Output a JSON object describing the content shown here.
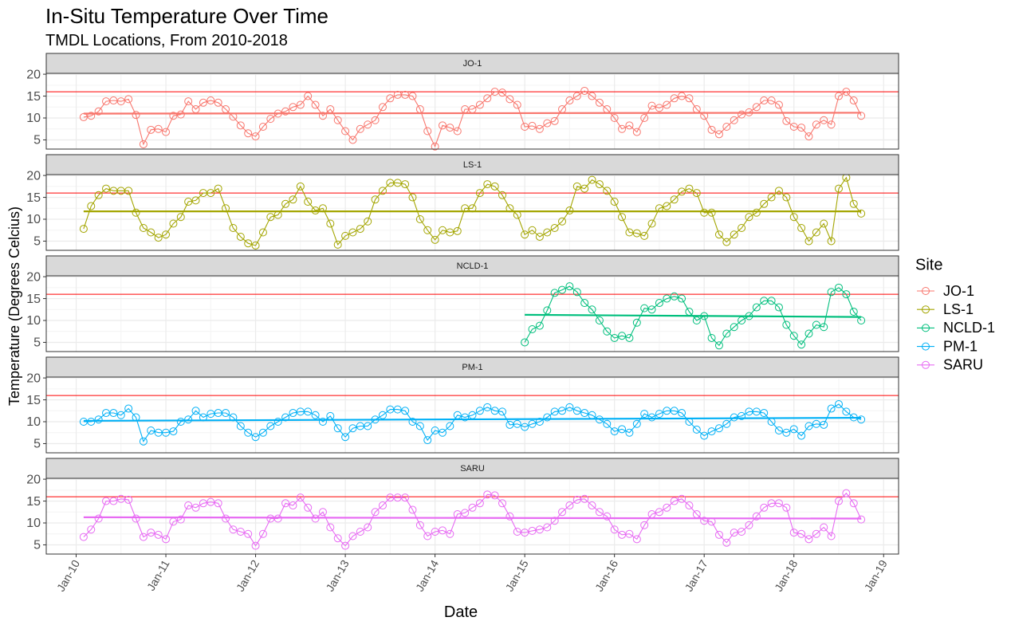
{
  "chart_data": {
    "type": "line",
    "title": "In-Situ Temperature Over Time",
    "subtitle": "TMDL Locations, From 2010-2018",
    "x_label": "Date",
    "y_label": "Temperature (Degrees Celcius)",
    "legend_title": "Site",
    "grid": true,
    "threshold": 16,
    "threshold_color": "#ff0000",
    "x": [
      "2010-02",
      "2010-03",
      "2010-04",
      "2010-05",
      "2010-06",
      "2010-07",
      "2010-08",
      "2010-09",
      "2010-10",
      "2010-11",
      "2010-12",
      "2011-01",
      "2011-02",
      "2011-03",
      "2011-04",
      "2011-05",
      "2011-06",
      "2011-07",
      "2011-08",
      "2011-09",
      "2011-10",
      "2011-11",
      "2011-12",
      "2012-01",
      "2012-02",
      "2012-03",
      "2012-04",
      "2012-05",
      "2012-06",
      "2012-07",
      "2012-08",
      "2012-09",
      "2012-10",
      "2012-11",
      "2012-12",
      "2013-01",
      "2013-02",
      "2013-03",
      "2013-04",
      "2013-05",
      "2013-06",
      "2013-07",
      "2013-08",
      "2013-09",
      "2013-10",
      "2013-11",
      "2013-12",
      "2014-01",
      "2014-02",
      "2014-03",
      "2014-04",
      "2014-05",
      "2014-06",
      "2014-07",
      "2014-08",
      "2014-09",
      "2014-10",
      "2014-11",
      "2014-12",
      "2015-01",
      "2015-02",
      "2015-03",
      "2015-04",
      "2015-05",
      "2015-06",
      "2015-07",
      "2015-08",
      "2015-09",
      "2015-10",
      "2015-11",
      "2015-12",
      "2016-01",
      "2016-02",
      "2016-03",
      "2016-04",
      "2016-05",
      "2016-06",
      "2016-07",
      "2016-08",
      "2016-09",
      "2016-10",
      "2016-11",
      "2016-12",
      "2017-01",
      "2017-02",
      "2017-03",
      "2017-04",
      "2017-05",
      "2017-06",
      "2017-07",
      "2017-08",
      "2017-09",
      "2017-10",
      "2017-11",
      "2017-12",
      "2018-01",
      "2018-02",
      "2018-03",
      "2018-04",
      "2018-05",
      "2018-06",
      "2018-07",
      "2018-08",
      "2018-09",
      "2018-10"
    ],
    "xlim": [
      "2009-09",
      "2019-03"
    ],
    "xticks": [
      {
        "value": "2010-01",
        "label": "Jan-10"
      },
      {
        "value": "2011-01",
        "label": "Jan-11"
      },
      {
        "value": "2012-01",
        "label": "Jan-12"
      },
      {
        "value": "2013-01",
        "label": "Jan-13"
      },
      {
        "value": "2014-01",
        "label": "Jan-14"
      },
      {
        "value": "2015-01",
        "label": "Jan-15"
      },
      {
        "value": "2016-01",
        "label": "Jan-16"
      },
      {
        "value": "2017-01",
        "label": "Jan-17"
      },
      {
        "value": "2018-01",
        "label": "Jan-18"
      },
      {
        "value": "2019-01",
        "label": "Jan-19"
      }
    ],
    "ylim": [
      2.9,
      20.2
    ],
    "yticks": [
      5,
      10,
      15,
      20
    ],
    "series": [
      {
        "name": "JO-1",
        "color": "#F8766D",
        "values": [
          10.2,
          10.5,
          11.5,
          13.8,
          14,
          13.8,
          14.3,
          10.7,
          4,
          7.3,
          7.5,
          6.8,
          10.5,
          10.8,
          13.8,
          12,
          13.5,
          14,
          13.5,
          12,
          10.3,
          8.3,
          6.5,
          5.8,
          8,
          9.8,
          11,
          11.5,
          12.5,
          13,
          15,
          13,
          10.5,
          12,
          9.5,
          7,
          5,
          7.5,
          8.5,
          9.5,
          12.5,
          14.5,
          15.3,
          15.3,
          15,
          12,
          7,
          3.5,
          8.3,
          7.8,
          7,
          12,
          12,
          13,
          14.5,
          16,
          15.8,
          14.3,
          13,
          8,
          8.2,
          7.5,
          8.8,
          9.3,
          12,
          14,
          15,
          16.2,
          15,
          13.5,
          12,
          10,
          7.5,
          8.3,
          6.8,
          10,
          12.8,
          12.3,
          13,
          14.5,
          15,
          14.5,
          12,
          10.5,
          7.3,
          6.3,
          8,
          9.5,
          10.8,
          11.3,
          12.5,
          14,
          14,
          13,
          9.3,
          8,
          7.8,
          5.8,
          8.5,
          9.5,
          8.5,
          15,
          16,
          14,
          10.5
        ],
        "trend": {
          "x": [
            "2010-02",
            "2018-10"
          ],
          "values": [
            11,
            11.2
          ]
        }
      },
      {
        "name": "LS-1",
        "color": "#A3A500",
        "values": [
          7.8,
          13,
          15.5,
          17,
          16.5,
          16.5,
          16.5,
          11.5,
          8,
          7,
          5.8,
          6.5,
          9,
          10.5,
          14,
          14.3,
          16,
          16,
          17,
          12.5,
          8,
          6,
          4.5,
          4,
          7,
          10.5,
          11,
          13.5,
          14.5,
          17.5,
          14,
          12,
          12.5,
          9,
          4.2,
          6.2,
          7,
          7.8,
          9.5,
          14.5,
          16.5,
          18.3,
          18.3,
          18,
          15,
          10,
          7.5,
          5.3,
          7.5,
          7,
          7.3,
          12.5,
          12.5,
          16,
          18,
          17.5,
          15.5,
          12.5,
          11,
          6.5,
          7.5,
          6,
          7,
          8,
          9.5,
          12,
          17.5,
          17,
          19,
          18,
          16.5,
          14,
          10.5,
          7,
          6.8,
          6.2,
          9,
          12.5,
          13,
          14.5,
          16.3,
          17,
          16,
          11.5,
          11.5,
          6.5,
          4.8,
          6.5,
          8,
          10.5,
          11.5,
          13.5,
          15,
          16.5,
          15,
          10.5,
          8,
          5,
          7,
          9,
          5,
          17,
          19.5,
          13.5,
          11.3
        ],
        "trend": {
          "x": [
            "2010-02",
            "2018-10"
          ],
          "values": [
            11.8,
            11.8
          ]
        }
      },
      {
        "name": "NCLD-1",
        "color": "#00BF7D",
        "values": [
          null,
          null,
          null,
          null,
          null,
          null,
          null,
          null,
          null,
          null,
          null,
          null,
          null,
          null,
          null,
          null,
          null,
          null,
          null,
          null,
          null,
          null,
          null,
          null,
          null,
          null,
          null,
          null,
          null,
          null,
          null,
          null,
          null,
          null,
          null,
          null,
          null,
          null,
          null,
          null,
          null,
          null,
          null,
          null,
          null,
          null,
          null,
          null,
          null,
          null,
          null,
          null,
          null,
          null,
          null,
          null,
          null,
          null,
          null,
          5,
          8,
          8.8,
          12.3,
          16.3,
          17,
          17.8,
          16.5,
          14,
          12.5,
          10,
          7.5,
          6,
          6.5,
          6,
          9.5,
          12.8,
          12.5,
          14,
          15,
          15.5,
          15,
          12,
          10,
          11,
          6,
          4.3,
          7,
          8.5,
          10,
          11,
          13,
          14.5,
          14.5,
          13,
          9,
          6.5,
          4.5,
          7,
          9,
          8.5,
          16.5,
          17.5,
          16,
          12,
          10
        ],
        "trend": {
          "x": [
            "2015-01",
            "2018-10"
          ],
          "values": [
            11.3,
            10.8
          ]
        }
      },
      {
        "name": "PM-1",
        "color": "#00B0F6",
        "values": [
          10,
          10,
          10.5,
          12,
          12,
          11.5,
          13,
          11,
          5.5,
          8,
          7.5,
          7.5,
          7.8,
          10,
          10.5,
          12.5,
          11,
          11.8,
          12,
          12,
          11,
          9,
          7.5,
          6.5,
          7.5,
          9,
          10,
          11,
          12,
          12.3,
          12.3,
          11.5,
          10,
          11.3,
          8.5,
          6.5,
          8.5,
          9,
          9,
          10.5,
          11.5,
          12.8,
          12.8,
          12.5,
          10,
          9,
          5.8,
          8,
          7.5,
          9,
          11.5,
          11,
          11.5,
          12.5,
          13.3,
          12.5,
          12.3,
          9.3,
          9.5,
          8.8,
          9.5,
          10,
          11,
          12.3,
          12.5,
          13.3,
          12.5,
          12,
          11.5,
          10.5,
          9.5,
          7.8,
          8.3,
          7.5,
          9.5,
          11.8,
          11,
          11.8,
          12.5,
          12.5,
          12,
          10,
          8.2,
          6.8,
          7.8,
          8.5,
          9.5,
          11,
          11.3,
          12.3,
          12.3,
          12,
          10,
          8,
          7.5,
          8.3,
          6.8,
          9,
          9.5,
          9.3,
          13,
          14,
          12.3,
          11,
          10.5
        ],
        "trend": {
          "x": [
            "2010-02",
            "2018-10"
          ],
          "values": [
            10.2,
            10.9
          ]
        }
      },
      {
        "name": "SARU",
        "color": "#E76BF3",
        "values": [
          6.8,
          8.5,
          11,
          15,
          15,
          15.5,
          15.3,
          11,
          6.8,
          7.8,
          7.3,
          6.3,
          10.3,
          10.8,
          14,
          13.5,
          14.5,
          14.8,
          14.5,
          11,
          8.5,
          8,
          7.5,
          4.8,
          7.5,
          11,
          11,
          14.5,
          14,
          15.8,
          13.5,
          11,
          12.5,
          9,
          6.5,
          4.8,
          7,
          8,
          9,
          12.5,
          14,
          15.8,
          15.8,
          15.8,
          13,
          9.5,
          7,
          8,
          8.3,
          7.5,
          12,
          12.3,
          13.5,
          14.5,
          16.5,
          16.3,
          14.5,
          11.5,
          8,
          7.8,
          8.2,
          8.5,
          9,
          10.5,
          12.5,
          14,
          15.3,
          15.5,
          14,
          12.5,
          11.5,
          8.5,
          7.3,
          7.5,
          6.3,
          9.5,
          12,
          12.5,
          13.5,
          15,
          15.5,
          14,
          12,
          10.5,
          10.3,
          7.3,
          5.5,
          7.8,
          8,
          9.5,
          11.5,
          13.5,
          14.5,
          14.5,
          13.5,
          7.8,
          7.5,
          6.3,
          7.5,
          9,
          7,
          15,
          16.8,
          14.5,
          10.8
        ],
        "trend": {
          "x": [
            "2010-02",
            "2018-10"
          ],
          "values": [
            11.3,
            11.0
          ]
        }
      }
    ]
  }
}
